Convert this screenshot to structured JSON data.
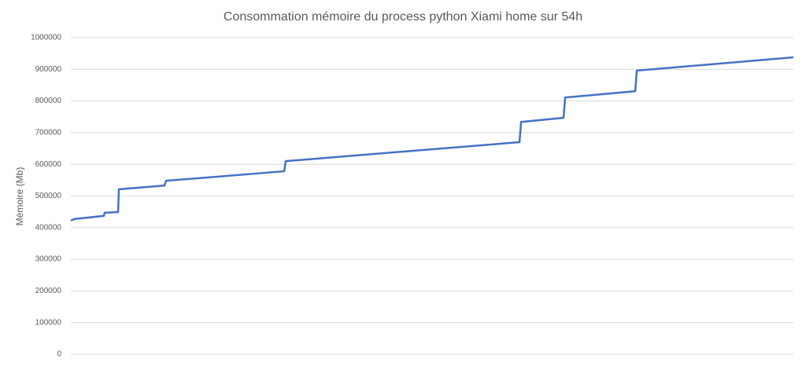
{
  "chart_data": {
    "type": "line",
    "title": "Consommation mémoire du process python Xiami home sur 54h",
    "y_label": "Mémoire (Mb)",
    "x": [
      0,
      0.24,
      2.47,
      2.53,
      3.53,
      3.59,
      7.0,
      7.12,
      15.94,
      16.06,
      33.53,
      33.65,
      36.82,
      36.94,
      42.18,
      42.29,
      54
    ],
    "series": [
      {
        "color": "#4472c4",
        "values": [
          422000,
          427000,
          437000,
          447000,
          449000,
          521000,
          533000,
          548000,
          578000,
          610000,
          670000,
          734000,
          747000,
          811000,
          831000,
          896000,
          938000
        ]
      }
    ],
    "xlim": [
      0,
      54
    ],
    "ylim": [
      0,
      1000000
    ],
    "yticks": [
      0,
      100000,
      200000,
      300000,
      400000,
      500000,
      600000,
      700000,
      800000,
      900000,
      1000000
    ],
    "grid": true
  }
}
